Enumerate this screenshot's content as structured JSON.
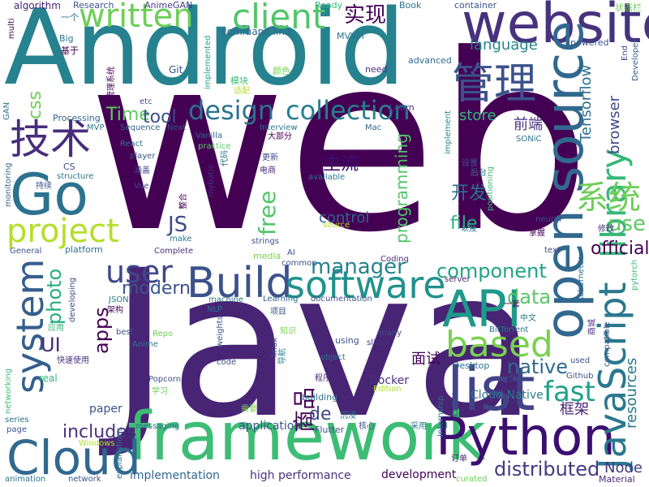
{
  "words": [
    {
      "text": "web",
      "color": "#440154"
    },
    {
      "text": "Java",
      "color": "#482475"
    },
    {
      "text": "Android",
      "color": "#26828e"
    },
    {
      "text": "framework",
      "color": "#3dbc74"
    },
    {
      "text": "Python",
      "color": "#3b0f70"
    },
    {
      "text": "list",
      "color": "#414487"
    },
    {
      "text": "website",
      "color": "#46327e"
    },
    {
      "text": "open source",
      "color": "#31688e"
    },
    {
      "text": "JavaScript",
      "color": "#2a788e"
    },
    {
      "text": "Cloud",
      "color": "#31688e"
    },
    {
      "text": "API",
      "color": "#1f9a8a"
    },
    {
      "text": "Build",
      "color": "#3b528b"
    },
    {
      "text": "software",
      "color": "#21918c"
    },
    {
      "text": "Go",
      "color": "#2c728e"
    },
    {
      "text": "system",
      "color": "#355f8d"
    },
    {
      "text": "based",
      "color": "#7ad151"
    },
    {
      "text": "library",
      "color": "#35b779"
    },
    {
      "text": "管理",
      "color": "#3b528b"
    },
    {
      "text": "技术",
      "color": "#472d7b"
    },
    {
      "text": "project",
      "color": "#b5de2b"
    },
    {
      "text": "written",
      "color": "#6ece58"
    },
    {
      "text": "client",
      "color": "#52c569"
    },
    {
      "text": "design",
      "color": "#2c728e"
    },
    {
      "text": "collection",
      "color": "#277f8e"
    },
    {
      "text": "系统",
      "color": "#6ece58"
    },
    {
      "text": "user",
      "color": "#3f4889"
    },
    {
      "text": "fast",
      "color": "#1fa187"
    },
    {
      "text": "商品",
      "color": "#440154"
    },
    {
      "text": "distributed",
      "color": "#443983"
    },
    {
      "text": "native",
      "color": "#31688e"
    },
    {
      "text": "component",
      "color": "#20a486"
    },
    {
      "text": "apps",
      "color": "#440154"
    },
    {
      "text": "data",
      "color": "#56c667"
    },
    {
      "text": "photo",
      "color": "#27ad81"
    },
    {
      "text": "UI",
      "color": "#482878"
    },
    {
      "text": "free",
      "color": "#52c569"
    },
    {
      "text": "JS",
      "color": "#3e4a89"
    },
    {
      "text": "Time",
      "color": "#5ec962"
    },
    {
      "text": "tool",
      "color": "#3b528b"
    },
    {
      "text": "实现",
      "color": "#440154"
    },
    {
      "text": "manager",
      "color": "#26828e"
    },
    {
      "text": "de",
      "color": "#3f4788"
    },
    {
      "text": "includes",
      "color": "#46327e"
    },
    {
      "text": "modern",
      "color": "#3b528b"
    },
    {
      "text": "programming",
      "color": "#52c569"
    },
    {
      "text": "control",
      "color": "#33638d"
    },
    {
      "text": "language",
      "color": "#25858e"
    },
    {
      "text": "file",
      "color": "#29af7f"
    },
    {
      "text": "use",
      "color": "#5ec962"
    },
    {
      "text": "official",
      "color": "#440154"
    },
    {
      "text": "Tensorflow",
      "color": "#2d708e"
    },
    {
      "text": "browser",
      "color": "#3e4989"
    },
    {
      "text": "resources",
      "color": "#2a788e"
    },
    {
      "text": "前端",
      "color": "#46327e"
    },
    {
      "text": "主流",
      "color": "#3b0f70"
    },
    {
      "text": "开发",
      "color": "#2d708e"
    },
    {
      "text": "面试",
      "color": "#440154"
    },
    {
      "text": "框架",
      "color": "#482475"
    },
    {
      "text": "Node",
      "color": "#443983"
    },
    {
      "text": "css",
      "color": "#6ece58"
    },
    {
      "text": "store",
      "color": "#35b779"
    },
    {
      "text": "Material",
      "color": "#482878"
    },
    {
      "text": "Docker",
      "color": "#46327e"
    },
    {
      "text": "application",
      "color": "#3b528b"
    },
    {
      "text": "high performance",
      "color": "#46327e"
    },
    {
      "text": "development",
      "color": "#440154"
    },
    {
      "text": "implementation",
      "color": "#31688e"
    },
    {
      "text": "paper",
      "color": "#3b528b"
    },
    {
      "text": "Cloud Native",
      "color": "#2a788e"
    },
    {
      "text": "algorithm",
      "color": "#482475"
    },
    {
      "text": "Research",
      "color": "#3b528b"
    },
    {
      "text": "AnimeGAN",
      "color": "#443983"
    },
    {
      "text": "Ready",
      "color": "#35b779"
    },
    {
      "text": "Book",
      "color": "#2c728e"
    },
    {
      "text": "container",
      "color": "#3b528b"
    },
    {
      "text": "状态栏",
      "color": "#6ece58"
    },
    {
      "text": "一个",
      "color": "#2c728e"
    },
    {
      "text": "Big",
      "color": "#2a788e"
    },
    {
      "text": "基于",
      "color": "#440154"
    },
    {
      "text": "multi",
      "color": "#440154"
    },
    {
      "text": "implemented",
      "color": "#20a486"
    },
    {
      "text": "command line",
      "color": "#33638d"
    },
    {
      "text": "MVVM",
      "color": "#2c728e"
    },
    {
      "text": "powered",
      "color": "#3b528b"
    },
    {
      "text": "End",
      "color": "#3e4989"
    },
    {
      "text": "Developer",
      "color": "#355f8d"
    },
    {
      "text": "advanced",
      "color": "#31688e"
    },
    {
      "text": "need",
      "color": "#46327e"
    },
    {
      "text": "Git",
      "color": "#3b528b"
    },
    {
      "text": "颜色",
      "color": "#7ad151"
    },
    {
      "text": "模块",
      "color": "#3dbc74"
    },
    {
      "text": "适配",
      "color": "#b5de2b"
    },
    {
      "text": "管理系统",
      "color": "#440154"
    },
    {
      "text": "etc",
      "color": "#3b528b"
    },
    {
      "text": "Learn",
      "color": "#46327e"
    },
    {
      "text": "GAN",
      "color": "#2c728e"
    },
    {
      "text": "Processing",
      "color": "#33638d"
    },
    {
      "text": "MVP",
      "color": "#2a788e"
    },
    {
      "text": "Sequence",
      "color": "#33638d"
    },
    {
      "text": "Next",
      "color": "#3b528b"
    },
    {
      "text": "Vanilla",
      "color": "#31688e"
    },
    {
      "text": "Interview",
      "color": "#2a788e"
    },
    {
      "text": "Mac",
      "color": "#31688e"
    },
    {
      "text": "implement",
      "color": "#25858e"
    },
    {
      "text": "SONiC",
      "color": "#2c728e"
    },
    {
      "text": "React",
      "color": "#2a788e"
    },
    {
      "text": "player",
      "color": "#3b528b"
    },
    {
      "text": "practice",
      "color": "#5ec962"
    },
    {
      "text": "大部分",
      "color": "#440154"
    },
    {
      "text": "更新",
      "color": "#3f4788"
    },
    {
      "text": "CS",
      "color": "#3e4989"
    },
    {
      "text": "structure",
      "color": "#2a788e"
    },
    {
      "text": "涵盖",
      "color": "#414487"
    },
    {
      "text": "mybatis",
      "color": "#46327e"
    },
    {
      "text": "代码",
      "color": "#2c728e"
    },
    {
      "text": "电商",
      "color": "#482878"
    },
    {
      "text": "设置",
      "color": "#3b528b"
    },
    {
      "text": "后台",
      "color": "#2a788e"
    },
    {
      "text": "positioning",
      "color": "#3dbc74"
    },
    {
      "text": "monitoring",
      "color": "#31688e"
    },
    {
      "text": "持续",
      "color": "#3b528b"
    },
    {
      "text": "Vue",
      "color": "#3e4989"
    },
    {
      "text": "整合",
      "color": "#440154"
    },
    {
      "text": "available",
      "color": "#2a788e"
    },
    {
      "text": "以及",
      "color": "#2c728e"
    },
    {
      "text": "neural",
      "color": "#3b528b"
    },
    {
      "text": "掌握",
      "color": "#440154"
    },
    {
      "text": "修改",
      "color": "#482878"
    },
    {
      "text": "make",
      "color": "#2a788e"
    },
    {
      "text": "strings",
      "color": "#3b528b"
    },
    {
      "text": "source",
      "color": "#b5de2b"
    },
    {
      "text": "General",
      "color": "#3b528b"
    },
    {
      "text": "platform",
      "color": "#2c728e"
    },
    {
      "text": "Complete",
      "color": "#46327e"
    },
    {
      "text": "media",
      "color": "#7ad151"
    },
    {
      "text": "AI",
      "color": "#3b528b"
    },
    {
      "text": "Coding",
      "color": "#482878"
    },
    {
      "text": "text",
      "color": "#3e4989"
    },
    {
      "text": "Kubernetes",
      "color": "#31688e"
    },
    {
      "text": "pytorch",
      "color": "#3dbc74"
    },
    {
      "text": "common",
      "color": "#3b528b"
    },
    {
      "text": "server",
      "color": "#482878"
    },
    {
      "text": "developing",
      "color": "#3e4989"
    },
    {
      "text": "JSON",
      "color": "#2a788e"
    },
    {
      "text": "machine",
      "color": "#2c728e"
    },
    {
      "text": "documentation",
      "color": "#3b528b"
    },
    {
      "text": "一套",
      "color": "#440154"
    },
    {
      "text": "中文",
      "color": "#2a788e"
    },
    {
      "text": "架构",
      "color": "#440154"
    },
    {
      "text": "NLP",
      "color": "#2c728e"
    },
    {
      "text": "Learning",
      "color": "#31688e"
    },
    {
      "text": "项目",
      "color": "#3b528b"
    },
    {
      "text": "BitTorrent",
      "color": "#2c728e"
    },
    {
      "text": "商城",
      "color": "#482878"
    },
    {
      "text": "compatible",
      "color": "#3b528b"
    },
    {
      "text": "应用",
      "color": "#35b779"
    },
    {
      "text": "best",
      "color": "#3b528b"
    },
    {
      "text": "Repo",
      "color": "#6ece58"
    },
    {
      "text": "知识",
      "color": "#7ad151"
    },
    {
      "text": "weights",
      "color": "#3b528b"
    },
    {
      "text": "linux",
      "color": "#3e4989"
    },
    {
      "text": "导航",
      "color": "#2a788e"
    },
    {
      "text": "many",
      "color": "#3b528b"
    },
    {
      "text": "slider",
      "color": "#46327e"
    },
    {
      "text": "using",
      "color": "#3b528b"
    },
    {
      "text": "object",
      "color": "#2c728e"
    },
    {
      "text": "Anime",
      "color": "#2a788e"
    },
    {
      "text": "code",
      "color": "#3b528b"
    },
    {
      "text": "Desktop",
      "color": "#2c728e"
    },
    {
      "text": "used",
      "color": "#3b528b"
    },
    {
      "text": "一份",
      "color": "#3e4989"
    },
    {
      "text": "Github",
      "color": "#3b528b"
    },
    {
      "text": "real",
      "color": "#35b779"
    },
    {
      "text": "快速使用",
      "color": "#46327e"
    },
    {
      "text": "networking",
      "color": "#3dbc74"
    },
    {
      "text": "Popcorn",
      "color": "#3b528b"
    },
    {
      "text": "学习",
      "color": "#6ece58"
    },
    {
      "text": "程序员",
      "color": "#482878"
    },
    {
      "text": "building",
      "color": "#2c728e"
    },
    {
      "text": "Edition",
      "color": "#b5de2b"
    },
    {
      "text": "需要",
      "color": "#7ad151"
    },
    {
      "text": "series",
      "color": "#2c728e"
    },
    {
      "text": "page",
      "color": "#3b528b"
    },
    {
      "text": "沉浸",
      "color": "#2a788e"
    },
    {
      "text": "LaTeX",
      "color": "#3e4989"
    },
    {
      "text": "Internship",
      "color": "#2c728e"
    },
    {
      "text": "采用",
      "color": "#2a788e"
    },
    {
      "text": "核心",
      "color": "#3b528b"
    },
    {
      "text": "messaging",
      "color": "#2c728e"
    },
    {
      "text": "Flutter",
      "color": "#3b528b"
    },
    {
      "text": "Windows",
      "color": "#b5de2b"
    },
    {
      "text": "explanations",
      "color": "#2a788e"
    },
    {
      "text": "订单",
      "color": "#482878"
    },
    {
      "text": "animation",
      "color": "#2c728e"
    },
    {
      "text": "network",
      "color": "#3b528b"
    },
    {
      "text": "curated",
      "color": "#6ece58"
    }
  ]
}
